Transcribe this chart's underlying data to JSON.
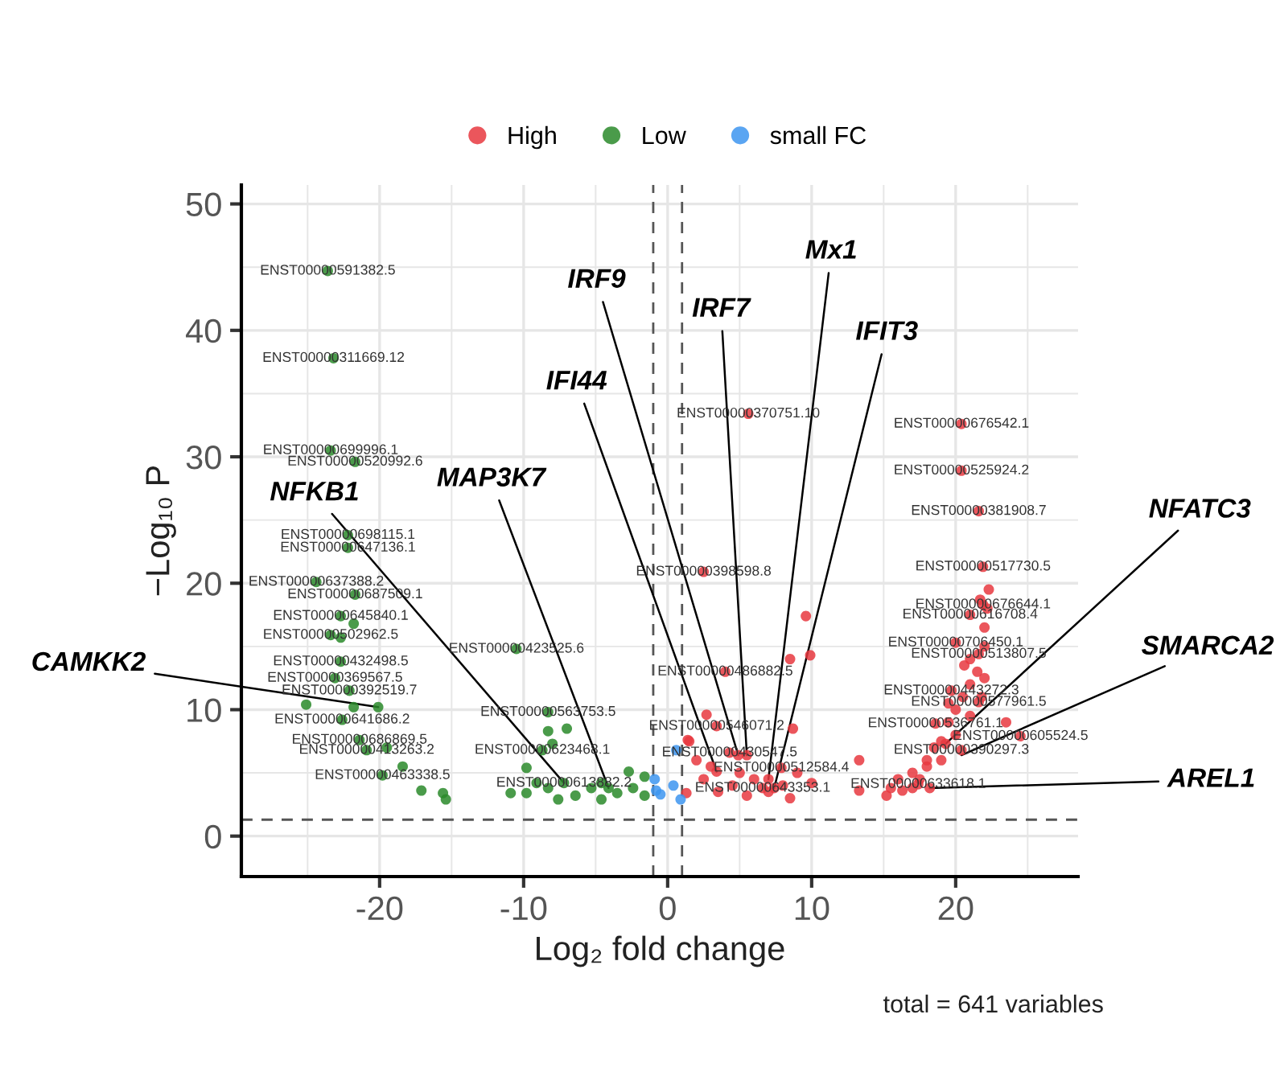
{
  "chart_data": {
    "type": "scatter",
    "xlabel": "Log₂ fold change",
    "ylabel": "−Log₁₀ P",
    "xlim": [
      -29.6,
      28.5
    ],
    "ylim": [
      -3.2,
      51.5
    ],
    "xticks": [
      -20,
      -10,
      0,
      10,
      20
    ],
    "yticks": [
      0,
      10,
      20,
      30,
      40,
      50
    ],
    "grid": true,
    "legend": "top",
    "marker": "circle",
    "ref_lines": [
      {
        "axis": "x",
        "value": -1,
        "color": "#555555",
        "line_style": "dashed"
      },
      {
        "axis": "x",
        "value": 1,
        "color": "#555555",
        "line_style": "dashed"
      },
      {
        "axis": "y",
        "value": 1.3,
        "color": "#555555",
        "line_style": "dashed"
      }
    ],
    "series": [
      {
        "name": "High",
        "color": "#e8383f",
        "x": [
          5.6,
          2.5,
          4.0,
          3.4,
          4.3,
          7.9,
          6.6,
          20.4,
          20.4,
          21.6,
          21.9,
          21.9,
          21.0,
          20.0,
          21.6,
          19.7,
          21.6,
          18.6,
          24.5,
          20.4,
          17.4,
          9.6,
          9.9,
          8.5,
          8.7,
          13.3,
          13.3,
          15.2,
          16.3,
          1.5,
          2.0,
          2.5,
          3.0,
          3.5,
          4.5,
          5.0,
          5.5,
          6.0,
          7.0,
          8.0,
          8.5,
          9.0,
          10.0,
          2.7,
          1.4,
          1.3,
          16.0,
          17.0,
          18.0,
          18.5,
          19.0,
          19.5,
          20.0,
          20.5,
          21.0,
          21.5,
          21.0,
          22.0,
          22.0,
          22.2,
          22.3,
          20.6,
          19.0,
          18.0,
          17.5,
          20.0,
          21.0,
          21.8,
          22.0,
          19.5,
          23.5,
          15.5,
          17.0,
          21.7,
          4.9,
          5.5,
          7.0,
          7.4,
          3.4,
          19.3,
          18.2
        ],
        "values": [
          33.4,
          20.9,
          13.0,
          8.7,
          6.6,
          5.4,
          3.8,
          32.6,
          28.9,
          25.7,
          21.3,
          18.3,
          17.5,
          15.3,
          14.4,
          11.5,
          10.6,
          8.9,
          7.9,
          6.8,
          4.1,
          17.4,
          14.3,
          14.0,
          8.5,
          6.0,
          3.6,
          3.2,
          3.6,
          7.5,
          6.0,
          4.5,
          5.5,
          3.5,
          4.0,
          5.0,
          3.2,
          4.5,
          3.5,
          4.0,
          3.0,
          5.0,
          4.2,
          9.6,
          7.6,
          3.4,
          4.5,
          5.0,
          6.0,
          7.0,
          7.5,
          9.0,
          10.0,
          11.0,
          12.0,
          13.0,
          14.0,
          15.0,
          16.5,
          18.0,
          19.5,
          13.5,
          6.0,
          5.5,
          4.5,
          8.0,
          9.5,
          11.0,
          12.5,
          10.5,
          9.0,
          3.8,
          3.8,
          18.7,
          6.4,
          6.4,
          4.5,
          3.8,
          5.1,
          7.3,
          3.8
        ]
      },
      {
        "name": "Low",
        "color": "#2a8a2a",
        "x": [
          -23.6,
          -23.2,
          -23.4,
          -21.7,
          -22.2,
          -22.2,
          -24.4,
          -21.7,
          -22.7,
          -23.4,
          -22.7,
          -23.1,
          -22.1,
          -22.6,
          -21.4,
          -20.9,
          -19.8,
          -10.5,
          -8.3,
          -8.7,
          -7.2,
          -22.7,
          -21.8,
          -21.8,
          -25.1,
          -19.5,
          -18.4,
          -17.1,
          -15.6,
          -15.4,
          -9.8,
          -8.3,
          -7.0,
          -8.0,
          -9.1,
          -8.3,
          -6.4,
          -5.3,
          -4.6,
          -3.5,
          -2.4,
          -1.6,
          -9.8,
          -7.6,
          -4.6,
          -10.9,
          -2.7,
          -1.6,
          -4.1,
          -20.1
        ],
        "values": [
          44.7,
          37.8,
          30.5,
          29.6,
          23.8,
          22.8,
          20.1,
          19.1,
          17.4,
          15.9,
          13.8,
          12.5,
          11.5,
          9.2,
          7.6,
          6.8,
          4.8,
          14.8,
          9.8,
          6.8,
          4.2,
          15.7,
          16.8,
          10.2,
          10.4,
          7.0,
          5.5,
          3.6,
          3.4,
          2.9,
          5.4,
          8.3,
          8.5,
          7.3,
          4.2,
          3.8,
          3.2,
          3.8,
          4.2,
          3.4,
          3.8,
          3.2,
          3.4,
          2.9,
          2.9,
          3.4,
          5.1,
          4.7,
          3.8,
          10.2
        ]
      },
      {
        "name": "small FC",
        "color": "#3d95f0",
        "x": [
          0.6,
          -0.8,
          -0.5,
          0.9,
          0.4,
          -0.9
        ],
        "values": [
          6.8,
          3.6,
          3.3,
          2.9,
          4.0,
          4.5
        ]
      }
    ],
    "annotations": [
      {
        "text": "IRF9",
        "x": 4.9,
        "y": 6.4
      },
      {
        "text": "IRF7",
        "x": 5.5,
        "y": 6.4
      },
      {
        "text": "Mx1",
        "x": 7.0,
        "y": 4.5
      },
      {
        "text": "IFIT3",
        "x": 7.4,
        "y": 3.8
      },
      {
        "text": "IFI44",
        "x": 3.4,
        "y": 5.1
      },
      {
        "text": "NFKB1",
        "x": -7.2,
        "y": 4.2
      },
      {
        "text": "MAP3K7",
        "x": -4.1,
        "y": 3.8
      },
      {
        "text": "CAMKK2",
        "x": -20.1,
        "y": 10.2
      },
      {
        "text": "NFATC3",
        "x": 19.3,
        "y": 7.3
      },
      {
        "text": "SMARCA2",
        "x": 20.4,
        "y": 6.4
      },
      {
        "text": "AREL1",
        "x": 18.2,
        "y": 3.8
      },
      {
        "text": "ENST00000591382.5",
        "x": -23.6,
        "y": 44.7
      },
      {
        "text": "ENST00000311669.12",
        "x": -23.2,
        "y": 37.8
      },
      {
        "text": "ENST00000699996.1",
        "x": -23.4,
        "y": 30.5
      },
      {
        "text": "ENST00000520992.6",
        "x": -21.7,
        "y": 29.6
      },
      {
        "text": "ENST00000698115.1",
        "x": -22.2,
        "y": 23.8
      },
      {
        "text": "ENST00000647136.1",
        "x": -22.2,
        "y": 22.8
      },
      {
        "text": "ENST00000637388.2",
        "x": -24.4,
        "y": 20.1
      },
      {
        "text": "ENST00000687509.1",
        "x": -21.7,
        "y": 19.1
      },
      {
        "text": "ENST00000645840.1",
        "x": -22.7,
        "y": 17.4
      },
      {
        "text": "ENST00000502962.5",
        "x": -23.4,
        "y": 15.9
      },
      {
        "text": "ENST00000432498.5",
        "x": -22.7,
        "y": 13.8
      },
      {
        "text": "ENST00000369567.5",
        "x": -23.1,
        "y": 12.5
      },
      {
        "text": "ENST00000392519.7",
        "x": -22.1,
        "y": 11.5
      },
      {
        "text": "ENST00000641686.2",
        "x": -22.6,
        "y": 9.2
      },
      {
        "text": "ENST00000686869.5",
        "x": -21.4,
        "y": 7.6
      },
      {
        "text": "ENST00000413263.2",
        "x": -20.9,
        "y": 6.8
      },
      {
        "text": "ENST00000463338.5",
        "x": -19.8,
        "y": 4.8
      },
      {
        "text": "ENST00000423525.6",
        "x": -10.5,
        "y": 14.8
      },
      {
        "text": "ENST00000563753.5",
        "x": -8.3,
        "y": 9.8
      },
      {
        "text": "ENST00000623468.1",
        "x": -8.7,
        "y": 6.8
      },
      {
        "text": "ENST00000613882.2",
        "x": -7.2,
        "y": 4.2
      },
      {
        "text": "ENST00000370751.10",
        "x": 5.6,
        "y": 33.4
      },
      {
        "text": "ENST00000398598.8",
        "x": 2.5,
        "y": 20.9
      },
      {
        "text": "ENST00000486882.5",
        "x": 4.0,
        "y": 13.0
      },
      {
        "text": "ENST00000546071.2",
        "x": 3.4,
        "y": 8.7
      },
      {
        "text": "ENST00000430547.5",
        "x": 4.3,
        "y": 6.6
      },
      {
        "text": "ENST00000512584.4",
        "x": 7.9,
        "y": 5.4
      },
      {
        "text": "ENST00000643353.1",
        "x": 6.6,
        "y": 3.8
      },
      {
        "text": "ENST00000676542.1",
        "x": 20.4,
        "y": 32.6
      },
      {
        "text": "ENST00000525924.2",
        "x": 20.4,
        "y": 28.9
      },
      {
        "text": "ENST00000381908.7",
        "x": 21.6,
        "y": 25.7
      },
      {
        "text": "ENST00000517730.5",
        "x": 21.9,
        "y": 21.3
      },
      {
        "text": "ENST00000676644.1",
        "x": 21.9,
        "y": 18.3
      },
      {
        "text": "ENST00000616708.4",
        "x": 21.0,
        "y": 17.5
      },
      {
        "text": "ENST00000706450.1",
        "x": 20.0,
        "y": 15.3
      },
      {
        "text": "ENST00000513807.5",
        "x": 21.6,
        "y": 14.4
      },
      {
        "text": "ENST00000443272.3",
        "x": 19.7,
        "y": 11.5
      },
      {
        "text": "ENST00000577961.5",
        "x": 21.6,
        "y": 10.6
      },
      {
        "text": "ENST00000536761.1",
        "x": 18.6,
        "y": 8.9
      },
      {
        "text": "ENST00000605524.5",
        "x": 24.5,
        "y": 7.9
      },
      {
        "text": "ENST00000390297.3",
        "x": 20.4,
        "y": 6.8
      },
      {
        "text": "ENST00000633618.1",
        "x": 17.4,
        "y": 4.1
      },
      "total = 641 variables"
    ]
  }
}
